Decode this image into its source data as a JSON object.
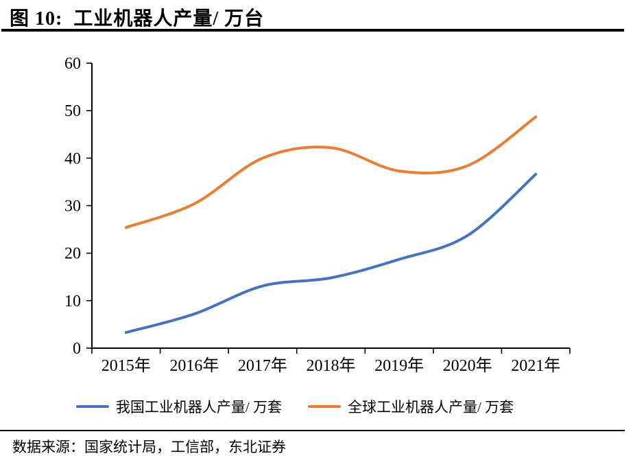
{
  "header": {
    "title": "图 10:  工业机器人产量/ 万台"
  },
  "footer": {
    "source": "数据来源：国家统计局，工信部，东北证券"
  },
  "colors": {
    "series_china": "#4472C4",
    "series_global": "#ED7D31",
    "axis": "#000000",
    "text": "#000000",
    "rule": "#000000"
  },
  "chart_data": {
    "type": "line",
    "title": "工业机器人产量/ 万台",
    "categories": [
      "2015年",
      "2016年",
      "2017年",
      "2018年",
      "2019年",
      "2020年",
      "2021年"
    ],
    "series": [
      {
        "id": "china",
        "name": "我国工业机器人产量/ 万套",
        "color": "#4472C4",
        "values": [
          3.3,
          7.2,
          13.1,
          14.8,
          18.7,
          23.7,
          36.6
        ]
      },
      {
        "id": "global",
        "name": "全球工业机器人产量/ 万套",
        "color": "#ED7D31",
        "values": [
          25.4,
          30.4,
          40.0,
          42.2,
          37.3,
          38.4,
          48.7
        ]
      }
    ],
    "xlabel": "",
    "ylabel": "",
    "ylim": [
      0,
      60
    ],
    "ytick_interval": 10,
    "yticks": [
      0,
      10,
      20,
      30,
      40,
      50,
      60
    ],
    "grid": false,
    "smooth_lines": true,
    "legend_position": "bottom"
  }
}
